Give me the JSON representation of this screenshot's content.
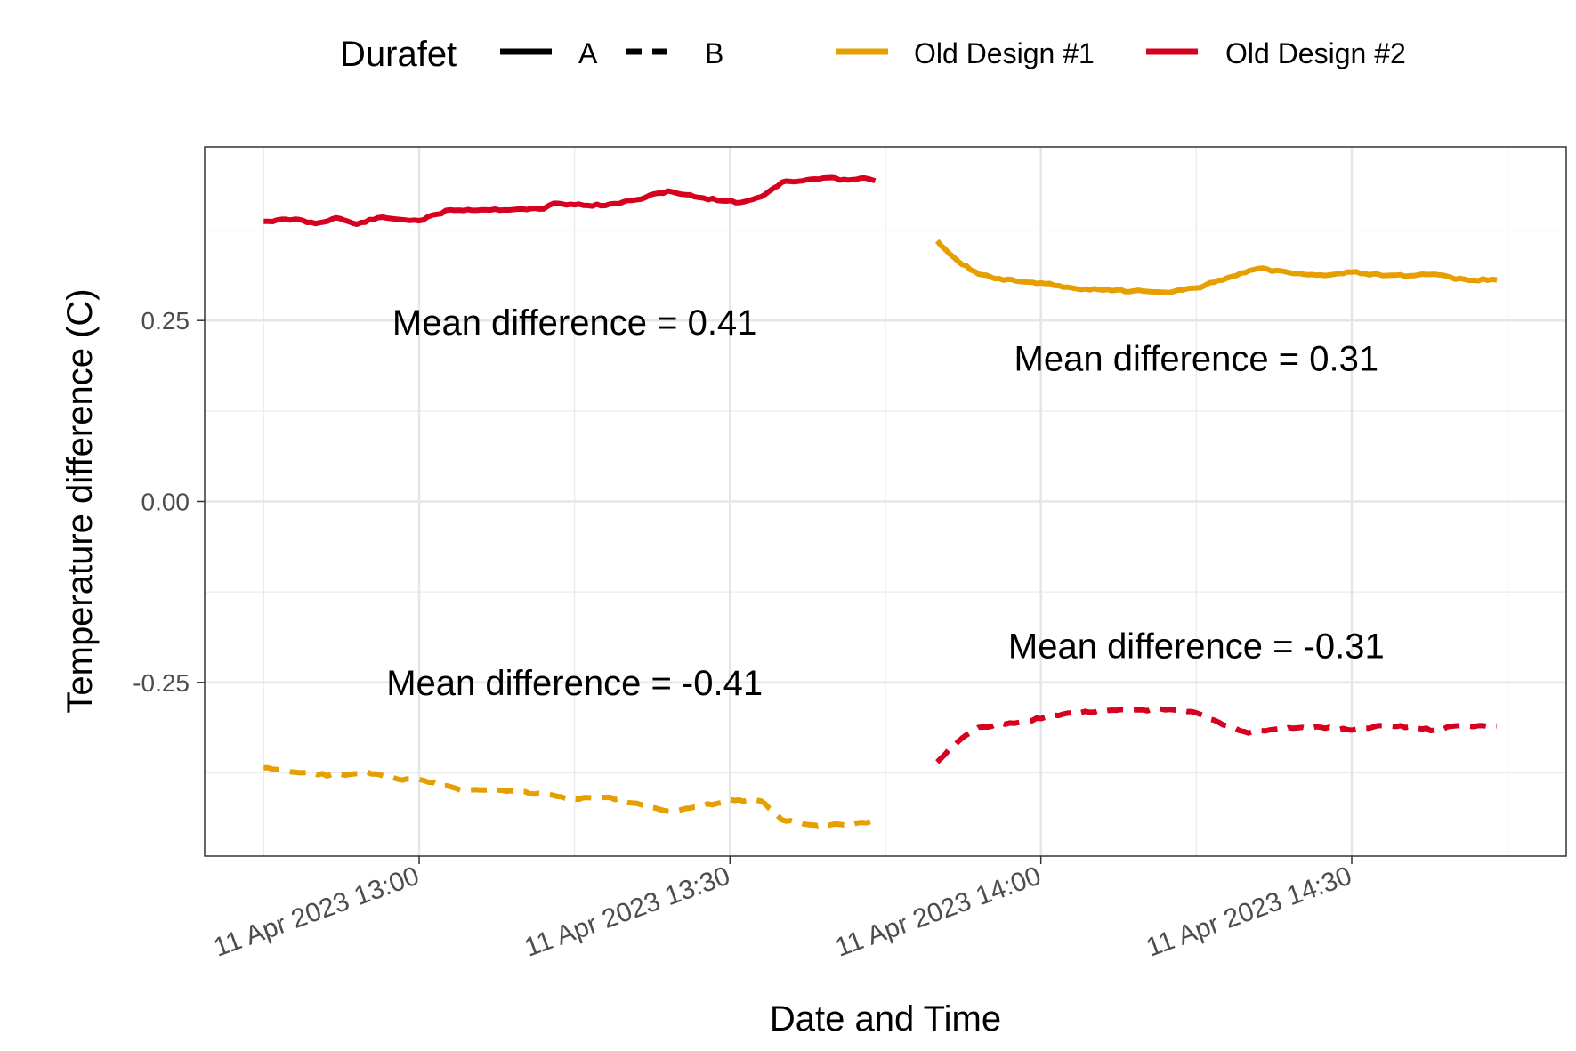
{
  "chart_data": {
    "type": "line",
    "xlabel": "Date and Time",
    "ylabel": "Temperature difference (C)",
    "ylim": [
      -0.49,
      0.49
    ],
    "grid": true,
    "legend_position": "top",
    "x_ticks": [
      {
        "time": "2023-04-11T13:00",
        "label": "11 Apr 2023 13:00"
      },
      {
        "time": "2023-04-11T13:30",
        "label": "11 Apr 2023 13:30"
      },
      {
        "time": "2023-04-11T14:00",
        "label": "11 Apr 2023 14:00"
      },
      {
        "time": "2023-04-11T14:30",
        "label": "11 Apr 2023 14:30"
      }
    ],
    "y_ticks": [
      {
        "value": 0.25,
        "label": "0.25"
      },
      {
        "value": 0.0,
        "label": "0.00"
      },
      {
        "value": -0.25,
        "label": "-0.25"
      }
    ],
    "legend": {
      "linetype_title": "Durafet",
      "linetypes": [
        {
          "label": "A",
          "style": "solid"
        },
        {
          "label": "B",
          "style": "dashed"
        }
      ],
      "colors": [
        {
          "label": "Old Design #1",
          "color": "#E69F00"
        },
        {
          "label": "Old Design #2",
          "color": "#D7001E"
        }
      ]
    },
    "series": [
      {
        "color_group": "Old Design #2",
        "linetype": "A",
        "color": "#D7001E",
        "style": "solid",
        "points": [
          [
            "2023-04-11T12:45",
            0.387
          ],
          [
            "2023-04-11T12:48",
            0.39
          ],
          [
            "2023-04-11T12:50",
            0.384
          ],
          [
            "2023-04-11T12:52",
            0.392
          ],
          [
            "2023-04-11T12:54",
            0.383
          ],
          [
            "2023-04-11T12:56",
            0.392
          ],
          [
            "2023-04-11T13:00",
            0.388
          ],
          [
            "2023-04-11T13:03",
            0.403
          ],
          [
            "2023-04-11T13:06",
            0.403
          ],
          [
            "2023-04-11T13:10",
            0.404
          ],
          [
            "2023-04-11T13:12",
            0.404
          ],
          [
            "2023-04-11T13:13",
            0.412
          ],
          [
            "2023-04-11T13:15",
            0.41
          ],
          [
            "2023-04-11T13:18",
            0.409
          ],
          [
            "2023-04-11T13:21",
            0.417
          ],
          [
            "2023-04-11T13:24",
            0.429
          ],
          [
            "2023-04-11T13:27",
            0.42
          ],
          [
            "2023-04-11T13:31",
            0.413
          ],
          [
            "2023-04-11T13:33",
            0.421
          ],
          [
            "2023-04-11T13:35",
            0.441
          ],
          [
            "2023-04-11T13:37",
            0.443
          ],
          [
            "2023-04-11T13:39",
            0.447
          ],
          [
            "2023-04-11T13:41",
            0.445
          ],
          [
            "2023-04-11T13:43",
            0.447
          ],
          [
            "2023-04-11T13:44",
            0.443
          ]
        ]
      },
      {
        "color_group": "Old Design #1",
        "linetype": "A",
        "color": "#E69F00",
        "style": "solid",
        "points": [
          [
            "2023-04-11T13:50",
            0.36
          ],
          [
            "2023-04-11T13:52",
            0.332
          ],
          [
            "2023-04-11T13:54",
            0.314
          ],
          [
            "2023-04-11T13:56",
            0.308
          ],
          [
            "2023-04-11T13:58",
            0.304
          ],
          [
            "2023-04-11T14:00",
            0.302
          ],
          [
            "2023-04-11T14:03",
            0.295
          ],
          [
            "2023-04-11T14:06",
            0.292
          ],
          [
            "2023-04-11T14:09",
            0.291
          ],
          [
            "2023-04-11T14:12",
            0.289
          ],
          [
            "2023-04-11T14:15",
            0.295
          ],
          [
            "2023-04-11T14:18",
            0.309
          ],
          [
            "2023-04-11T14:21",
            0.322
          ],
          [
            "2023-04-11T14:24",
            0.316
          ],
          [
            "2023-04-11T14:27",
            0.313
          ],
          [
            "2023-04-11T14:30",
            0.317
          ],
          [
            "2023-04-11T14:33",
            0.312
          ],
          [
            "2023-04-11T14:36",
            0.312
          ],
          [
            "2023-04-11T14:38",
            0.314
          ],
          [
            "2023-04-11T14:40",
            0.307
          ],
          [
            "2023-04-11T14:44",
            0.306
          ]
        ]
      },
      {
        "color_group": "Old Design #1",
        "linetype": "B",
        "color": "#E69F00",
        "style": "dashed",
        "points": [
          [
            "2023-04-11T12:45",
            -0.368
          ],
          [
            "2023-04-11T12:48",
            -0.374
          ],
          [
            "2023-04-11T12:52",
            -0.379
          ],
          [
            "2023-04-11T12:55",
            -0.374
          ],
          [
            "2023-04-11T12:58",
            -0.384
          ],
          [
            "2023-04-11T13:00",
            -0.384
          ],
          [
            "2023-04-11T13:04",
            -0.399
          ],
          [
            "2023-04-11T13:08",
            -0.399
          ],
          [
            "2023-04-11T13:12",
            -0.404
          ],
          [
            "2023-04-11T13:15",
            -0.411
          ],
          [
            "2023-04-11T13:18",
            -0.409
          ],
          [
            "2023-04-11T13:21",
            -0.417
          ],
          [
            "2023-04-11T13:24",
            -0.428
          ],
          [
            "2023-04-11T13:27",
            -0.422
          ],
          [
            "2023-04-11T13:30",
            -0.412
          ],
          [
            "2023-04-11T13:33",
            -0.414
          ],
          [
            "2023-04-11T13:35",
            -0.44
          ],
          [
            "2023-04-11T13:38",
            -0.447
          ],
          [
            "2023-04-11T13:41",
            -0.447
          ],
          [
            "2023-04-11T13:44",
            -0.443
          ]
        ]
      },
      {
        "color_group": "Old Design #2",
        "linetype": "B",
        "color": "#D7001E",
        "style": "dashed",
        "points": [
          [
            "2023-04-11T13:50",
            -0.36
          ],
          [
            "2023-04-11T13:52",
            -0.332
          ],
          [
            "2023-04-11T13:54",
            -0.312
          ],
          [
            "2023-04-11T13:57",
            -0.306
          ],
          [
            "2023-04-11T14:00",
            -0.3
          ],
          [
            "2023-04-11T14:03",
            -0.292
          ],
          [
            "2023-04-11T14:06",
            -0.29
          ],
          [
            "2023-04-11T14:09",
            -0.288
          ],
          [
            "2023-04-11T14:12",
            -0.288
          ],
          [
            "2023-04-11T14:15",
            -0.292
          ],
          [
            "2023-04-11T14:18",
            -0.31
          ],
          [
            "2023-04-11T14:20",
            -0.32
          ],
          [
            "2023-04-11T14:23",
            -0.314
          ],
          [
            "2023-04-11T14:27",
            -0.312
          ],
          [
            "2023-04-11T14:30",
            -0.316
          ],
          [
            "2023-04-11T14:33",
            -0.31
          ],
          [
            "2023-04-11T14:36",
            -0.312
          ],
          [
            "2023-04-11T14:38",
            -0.316
          ],
          [
            "2023-04-11T14:40",
            -0.31
          ],
          [
            "2023-04-11T14:44",
            -0.31
          ]
        ]
      }
    ],
    "annotations": [
      {
        "text": "Mean difference = 0.41",
        "time": "2023-04-11T13:15",
        "value": 0.248
      },
      {
        "text": "Mean difference = 0.31",
        "time": "2023-04-11T14:15",
        "value": 0.198
      },
      {
        "text": "Mean difference = -0.41",
        "time": "2023-04-11T13:15",
        "value": -0.25
      },
      {
        "text": "Mean difference = -0.31",
        "time": "2023-04-11T14:15",
        "value": -0.199
      }
    ]
  }
}
